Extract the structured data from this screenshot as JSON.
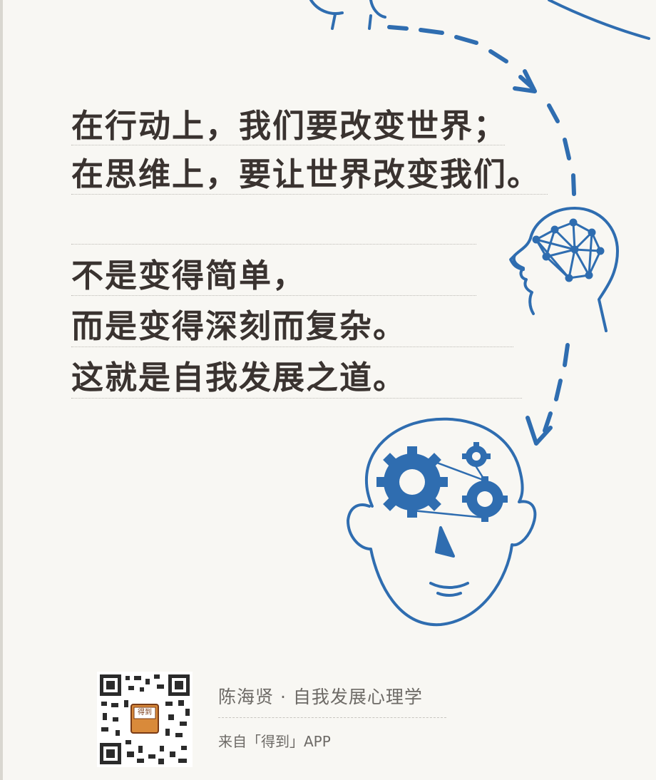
{
  "quote": {
    "lines": [
      "在行动上，我们要改变世界；",
      "在思维上，要让世界改变我们。",
      "不是变得简单，",
      "而是变得深刻而复杂。",
      "这就是自我发展之道。"
    ]
  },
  "footer": {
    "course_title": "陈海贤 · 自我发展心理学",
    "source": "来自「得到」APP",
    "qr_badge": "得到"
  },
  "colors": {
    "ink": "#3a3330",
    "illustration_blue": "#2f6db0",
    "badge_orange": "#d98a3a"
  },
  "icons": [
    "qr-code-icon",
    "head-outline-icon",
    "brain-network-icon",
    "gears-head-icon",
    "dashed-arrow-icon"
  ]
}
